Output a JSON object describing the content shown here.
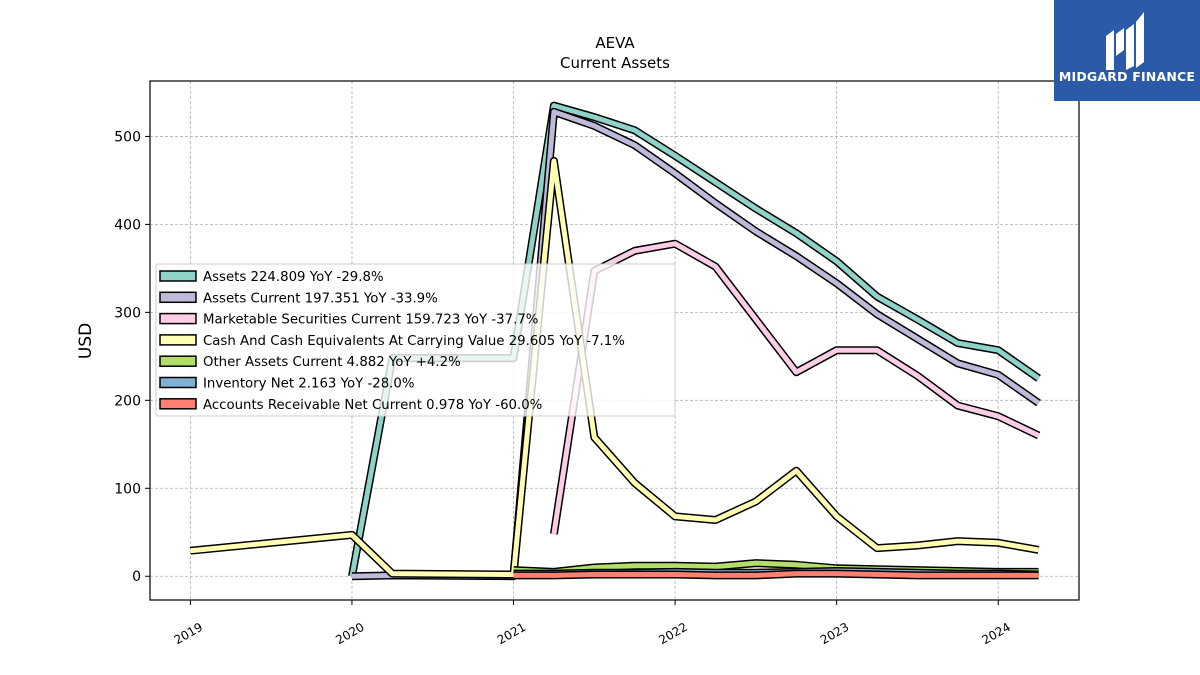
{
  "logo": {
    "text": "MIDGARD FINANCE",
    "icon": "midgard-logo-icon",
    "background": "#2b5aa8"
  },
  "chart_data": {
    "type": "line",
    "title": "AEVA",
    "subtitle": "Current  Assets",
    "xlabel": "",
    "ylabel": "USD",
    "xlim": [
      2018.75,
      2024.5
    ],
    "ylim": [
      -27,
      563
    ],
    "x_ticks": [
      "2019",
      "2020",
      "2021",
      "2022",
      "2023",
      "2024"
    ],
    "x_tick_values": [
      2019,
      2020,
      2021,
      2022,
      2023,
      2024
    ],
    "y_ticks": [
      0,
      100,
      200,
      300,
      400,
      500
    ],
    "grid": true,
    "legend_position": "center-left",
    "series": [
      {
        "name": "Assets",
        "legend": "Assets  224.809 YoY -29.8%",
        "color": "#8dd3c7",
        "points": [
          [
            2020.0,
            0
          ],
          [
            2020.25,
            248
          ],
          [
            2021.0,
            248
          ],
          [
            2021.25,
            535
          ],
          [
            2021.5,
            522
          ],
          [
            2021.75,
            507
          ],
          [
            2022.0,
            478
          ],
          [
            2022.25,
            448
          ],
          [
            2022.5,
            418
          ],
          [
            2022.75,
            390
          ],
          [
            2023.0,
            358
          ],
          [
            2023.25,
            318
          ],
          [
            2023.5,
            292
          ],
          [
            2023.75,
            265
          ],
          [
            2024.0,
            257
          ],
          [
            2024.25,
            225
          ]
        ]
      },
      {
        "name": "Assets Current",
        "legend": "Assets Current  197.351 YoY -33.9%",
        "color": "#bebada",
        "points": [
          [
            2020.0,
            0
          ],
          [
            2020.25,
            1
          ],
          [
            2021.0,
            0
          ],
          [
            2021.25,
            528
          ],
          [
            2021.5,
            512
          ],
          [
            2021.75,
            490
          ],
          [
            2022.0,
            458
          ],
          [
            2022.25,
            424
          ],
          [
            2022.5,
            392
          ],
          [
            2022.75,
            364
          ],
          [
            2023.0,
            333
          ],
          [
            2023.25,
            298
          ],
          [
            2023.5,
            270
          ],
          [
            2023.75,
            242
          ],
          [
            2024.0,
            229
          ],
          [
            2024.25,
            197
          ]
        ]
      },
      {
        "name": "Marketable Securities Current",
        "legend": "Marketable Securities Current  159.723 YoY -37.7%",
        "color": "#fccde5",
        "points": [
          [
            2021.25,
            48
          ],
          [
            2021.5,
            347
          ],
          [
            2021.75,
            370
          ],
          [
            2022.0,
            378
          ],
          [
            2022.25,
            352
          ],
          [
            2022.5,
            292
          ],
          [
            2022.75,
            232
          ],
          [
            2023.0,
            257
          ],
          [
            2023.25,
            257
          ],
          [
            2023.5,
            228
          ],
          [
            2023.75,
            194
          ],
          [
            2024.0,
            182
          ],
          [
            2024.25,
            160
          ]
        ]
      },
      {
        "name": "Cash And Cash Equivalents At Carrying Value",
        "legend": "Cash And Cash Equivalents At Carrying Value  29.605 YoY -7.1%",
        "color": "#ffffb3",
        "points": [
          [
            2019.0,
            29
          ],
          [
            2020.0,
            47
          ],
          [
            2020.25,
            3
          ],
          [
            2021.0,
            2
          ],
          [
            2021.25,
            472
          ],
          [
            2021.5,
            158
          ],
          [
            2021.75,
            106
          ],
          [
            2022.0,
            68
          ],
          [
            2022.25,
            64
          ],
          [
            2022.5,
            85
          ],
          [
            2022.75,
            120
          ],
          [
            2023.0,
            68
          ],
          [
            2023.25,
            32
          ],
          [
            2023.5,
            35
          ],
          [
            2023.75,
            40
          ],
          [
            2024.0,
            38
          ],
          [
            2024.25,
            30
          ]
        ]
      },
      {
        "name": "Other Assets Current",
        "legend": "Other Assets Current  4.882 YoY +4.2%",
        "color": "#b3de69",
        "points": [
          [
            2021.0,
            7
          ],
          [
            2021.25,
            5
          ],
          [
            2021.5,
            10
          ],
          [
            2021.75,
            12
          ],
          [
            2022.0,
            12
          ],
          [
            2022.25,
            11
          ],
          [
            2022.5,
            15
          ],
          [
            2022.75,
            13
          ],
          [
            2023.0,
            9
          ],
          [
            2023.25,
            8
          ],
          [
            2023.5,
            7
          ],
          [
            2023.75,
            6
          ],
          [
            2024.0,
            5
          ],
          [
            2024.25,
            5
          ]
        ]
      },
      {
        "name": "Inventory Net",
        "legend": "Inventory Net  2.163 YoY -28.0%",
        "color": "#80b1d3",
        "points": [
          [
            2021.0,
            3
          ],
          [
            2021.25,
            3
          ],
          [
            2021.5,
            4
          ],
          [
            2021.75,
            4
          ],
          [
            2022.0,
            5
          ],
          [
            2022.25,
            4
          ],
          [
            2022.5,
            4
          ],
          [
            2022.75,
            5
          ],
          [
            2023.0,
            6
          ],
          [
            2023.25,
            5
          ],
          [
            2023.5,
            4
          ],
          [
            2023.75,
            3
          ],
          [
            2024.0,
            3
          ],
          [
            2024.25,
            2
          ]
        ]
      },
      {
        "name": "Accounts Receivable Net Current",
        "legend": "Accounts Receivable Net Current  0.978 YoY -60.0%",
        "color": "#fb8072",
        "points": [
          [
            2021.0,
            1
          ],
          [
            2021.25,
            1
          ],
          [
            2021.5,
            2
          ],
          [
            2021.75,
            2
          ],
          [
            2022.0,
            2
          ],
          [
            2022.25,
            1
          ],
          [
            2022.5,
            1
          ],
          [
            2022.75,
            3
          ],
          [
            2023.0,
            3
          ],
          [
            2023.25,
            2
          ],
          [
            2023.5,
            1
          ],
          [
            2023.75,
            1
          ],
          [
            2024.0,
            1
          ],
          [
            2024.25,
            1
          ]
        ]
      }
    ]
  }
}
